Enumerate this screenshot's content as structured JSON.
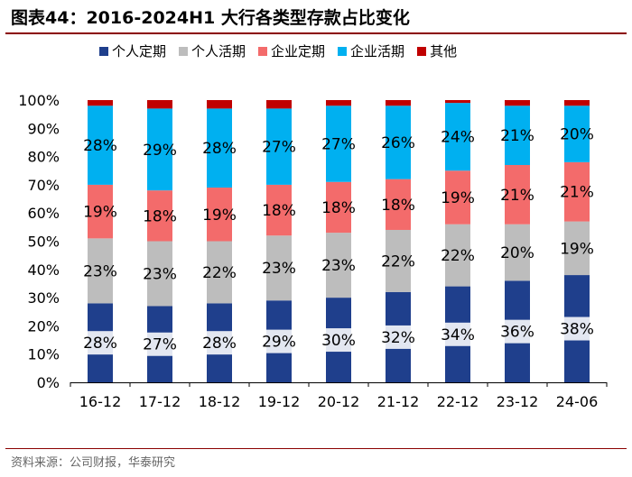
{
  "header": {
    "figure_label": "图表44：",
    "title": "2016-2024H1 大行各类型存款占比变化"
  },
  "footer": {
    "source": "资料来源：公司财报，华泰研究"
  },
  "chart_data": {
    "type": "bar",
    "stacked": true,
    "categories": [
      "16-12",
      "17-12",
      "18-12",
      "19-12",
      "20-12",
      "21-12",
      "22-12",
      "23-12",
      "24-06"
    ],
    "ylim": [
      0,
      100
    ],
    "yticks": [
      "0%",
      "10%",
      "20%",
      "30%",
      "40%",
      "50%",
      "60%",
      "70%",
      "80%",
      "90%",
      "100%"
    ],
    "legend_position": "top",
    "series": [
      {
        "name": "个人定期",
        "color": "#1f3f8c",
        "values": [
          28,
          27,
          28,
          29,
          30,
          32,
          34,
          36,
          38
        ],
        "labels": [
          "28%",
          "27%",
          "28%",
          "29%",
          "30%",
          "32%",
          "34%",
          "36%",
          "38%"
        ]
      },
      {
        "name": "个人活期",
        "color": "#bdbdbd",
        "values": [
          23,
          23,
          22,
          23,
          23,
          22,
          22,
          20,
          19
        ],
        "labels": [
          "23%",
          "23%",
          "22%",
          "23%",
          "23%",
          "22%",
          "22%",
          "20%",
          "19%"
        ]
      },
      {
        "name": "企业定期",
        "color": "#f36b6b",
        "values": [
          19,
          18,
          19,
          18,
          18,
          18,
          19,
          21,
          21
        ],
        "labels": [
          "19%",
          "18%",
          "19%",
          "18%",
          "18%",
          "18%",
          "19%",
          "21%",
          "21%"
        ]
      },
      {
        "name": "企业活期",
        "color": "#00b0f0",
        "values": [
          28,
          29,
          28,
          27,
          27,
          26,
          24,
          21,
          20
        ],
        "labels": [
          "28%",
          "29%",
          "28%",
          "27%",
          "27%",
          "26%",
          "24%",
          "21%",
          "20%"
        ]
      },
      {
        "name": "其他",
        "color": "#c00000",
        "values": [
          2,
          3,
          3,
          3,
          2,
          2,
          1,
          2,
          2
        ]
      }
    ]
  }
}
